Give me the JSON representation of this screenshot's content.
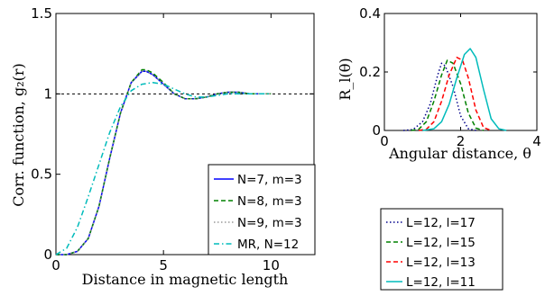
{
  "chart_data": [
    {
      "type": "line",
      "xlabel": "Distance in magnetic length",
      "ylabel": "Corr. function, g₂(r)",
      "xlim": [
        0,
        12
      ],
      "ylim": [
        0,
        1.5
      ],
      "xticks": [
        0,
        5,
        10
      ],
      "yticks": [
        0,
        0.5,
        1,
        1.5
      ],
      "xtick_labels": [
        "0",
        "5",
        "10"
      ],
      "ytick_labels": [
        "0",
        "0.5",
        "1",
        "1.5"
      ],
      "grid": false,
      "legend_position": "bottom-right",
      "reference_line": {
        "y": 1,
        "style": "dashed"
      },
      "series": [
        {
          "name": "N=7, m=3",
          "color": "#0000ff",
          "style": "solid",
          "x": [
            0,
            0.5,
            1,
            1.5,
            2,
            2.5,
            3,
            3.5,
            4,
            4.2,
            4.5,
            5,
            5.5,
            6,
            6.5,
            7,
            7.5,
            8,
            8.5,
            9,
            9.5
          ],
          "y": [
            0,
            0.0,
            0.02,
            0.1,
            0.3,
            0.6,
            0.88,
            1.07,
            1.14,
            1.14,
            1.12,
            1.06,
            1.0,
            0.97,
            0.97,
            0.98,
            1.0,
            1.01,
            1.01,
            1.0,
            1.0
          ]
        },
        {
          "name": "N=8, m=3",
          "color": "#008000",
          "style": "dashed",
          "x": [
            0,
            0.5,
            1,
            1.5,
            2,
            2.5,
            3,
            3.5,
            4,
            4.2,
            4.5,
            5,
            5.5,
            6,
            6.5,
            7,
            7.5,
            8,
            8.5,
            9,
            9.5,
            10
          ],
          "y": [
            0,
            0.0,
            0.02,
            0.1,
            0.3,
            0.6,
            0.88,
            1.07,
            1.15,
            1.15,
            1.13,
            1.07,
            1.0,
            0.97,
            0.97,
            0.98,
            1.0,
            1.01,
            1.01,
            1.0,
            1.0,
            1.0
          ]
        },
        {
          "name": "N=9, m=3",
          "color": "#999999",
          "style": "dotted",
          "x": [
            0,
            0.5,
            1,
            1.5,
            2,
            2.5,
            3,
            3.5,
            4,
            4.2,
            4.5,
            5,
            5.5,
            6,
            6.5,
            7,
            7.5,
            8,
            8.5,
            9,
            9.5,
            10
          ],
          "y": [
            0,
            0.0,
            0.02,
            0.1,
            0.3,
            0.6,
            0.88,
            1.07,
            1.14,
            1.14,
            1.12,
            1.06,
            1.0,
            0.97,
            0.97,
            0.98,
            1.0,
            1.01,
            1.01,
            1.0,
            1.0,
            1.0
          ]
        },
        {
          "name": "MR, N=12",
          "color": "#00bbbb",
          "style": "dashdot",
          "x": [
            0,
            0.5,
            1,
            1.5,
            2,
            2.5,
            3,
            3.5,
            4,
            4.5,
            5,
            5.5,
            6,
            6.5,
            7,
            7.5,
            8,
            8.5,
            9,
            9.5,
            10
          ],
          "y": [
            0,
            0.04,
            0.17,
            0.36,
            0.56,
            0.76,
            0.92,
            1.02,
            1.06,
            1.07,
            1.06,
            1.03,
            1.0,
            0.98,
            0.98,
            0.99,
            1.0,
            1.0,
            1.0,
            1.0,
            1.0
          ]
        }
      ]
    },
    {
      "type": "line",
      "xlabel": "Angular distance, θ",
      "ylabel": "R_l(θ)",
      "xlim": [
        0,
        4
      ],
      "ylim": [
        0,
        0.4
      ],
      "xticks": [
        0,
        2,
        4
      ],
      "yticks": [
        0,
        0.2,
        0.4
      ],
      "xtick_labels": [
        "0",
        "2",
        "4"
      ],
      "ytick_labels": [
        "0",
        "0.2",
        "0.4"
      ],
      "grid": false,
      "legend_position": "below",
      "series": [
        {
          "name": "L=12, l=17",
          "color": "#00008b",
          "style": "dotted",
          "x": [
            0.5,
            0.75,
            1,
            1.2,
            1.4,
            1.5,
            1.6,
            1.8,
            2,
            2.2,
            2.4
          ],
          "y": [
            0,
            0.003,
            0.03,
            0.09,
            0.19,
            0.23,
            0.22,
            0.15,
            0.05,
            0.006,
            0
          ]
        },
        {
          "name": "L=12, l=15",
          "color": "#008000",
          "style": "dashed",
          "x": [
            0.7,
            0.9,
            1.1,
            1.3,
            1.5,
            1.65,
            1.8,
            2,
            2.2,
            2.4,
            2.6
          ],
          "y": [
            0,
            0.004,
            0.03,
            0.1,
            0.19,
            0.24,
            0.23,
            0.16,
            0.06,
            0.008,
            0
          ]
        },
        {
          "name": "L=12, l=13",
          "color": "#ff0000",
          "style": "dashed",
          "x": [
            0.9,
            1.1,
            1.3,
            1.5,
            1.7,
            1.9,
            2.05,
            2.2,
            2.4,
            2.6,
            2.8
          ],
          "y": [
            0,
            0.004,
            0.03,
            0.1,
            0.19,
            0.25,
            0.24,
            0.18,
            0.07,
            0.01,
            0
          ]
        },
        {
          "name": "L=12, l=11",
          "color": "#00bbbb",
          "style": "solid",
          "x": [
            1.0,
            1.3,
            1.5,
            1.7,
            1.9,
            2.1,
            2.25,
            2.4,
            2.6,
            2.8,
            3.0,
            3.2
          ],
          "y": [
            0,
            0.006,
            0.03,
            0.09,
            0.18,
            0.26,
            0.28,
            0.25,
            0.14,
            0.04,
            0.006,
            0
          ]
        }
      ]
    }
  ]
}
